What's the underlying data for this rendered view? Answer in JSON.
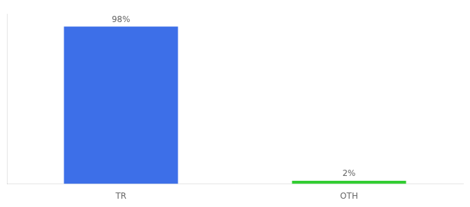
{
  "chart_data": {
    "type": "bar",
    "categories": [
      "TR",
      "OTH"
    ],
    "values": [
      98,
      2
    ],
    "value_labels": [
      "98%",
      "2%"
    ],
    "colors": [
      "#3d6fe8",
      "#32cd32"
    ],
    "ylim": [
      0,
      106
    ],
    "yticks": [],
    "tick_labels": "x",
    "grid": false,
    "data_labels": true
  }
}
